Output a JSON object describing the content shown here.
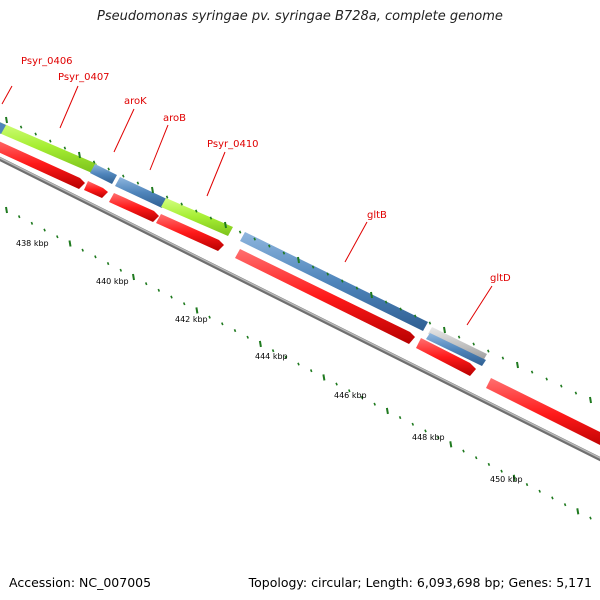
{
  "title": "Pseudomonas syringae pv. syringae B728a, complete genome",
  "accession": "Accession: NC_007005",
  "topology": "Topology: circular; Length: 6,093,698 bp; Genes: 5,171",
  "colors": {
    "backbone": "#8c8c8c",
    "cds": "#ff1a1a",
    "cog_green": "#a6ee33",
    "cog_blue": "#4f85bb",
    "cog_gray": "#c4c4c4",
    "tick": "#1f7a1f",
    "label": "#e00000"
  },
  "gene_labels": [
    "Psyr_0406",
    "Psyr_0407",
    "aroK",
    "aroB",
    "Psyr_0410",
    "gltB",
    "gltD"
  ],
  "kbp_labels": [
    "438 kbp",
    "440 kbp",
    "442 kbp",
    "444 kbp",
    "446 kbp",
    "448 kbp",
    "450 kbp"
  ]
}
